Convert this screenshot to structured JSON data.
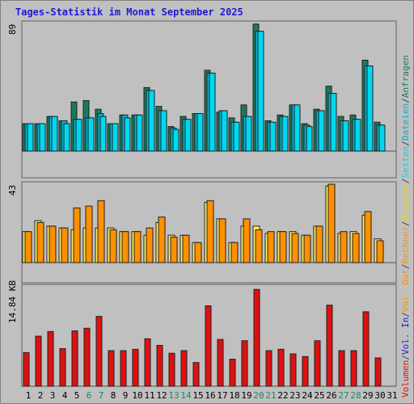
{
  "title": "Tages-Statistik im Monat September 2025",
  "colors": {
    "hits": "#1a7a5a",
    "files": "#00d8f0",
    "pages": "#00d8f0",
    "visits": "#fff060",
    "sites": "#ff9000",
    "kbytes": "#e01010",
    "background": "#c0c0c0",
    "title": "#1a1ad6",
    "weekend": "#1a8a5a"
  },
  "chart_data": [
    {
      "type": "bar",
      "panel": "top",
      "scale_label": "89",
      "ylim": [
        0,
        89
      ],
      "categories": [
        "1",
        "2",
        "3",
        "4",
        "5",
        "6",
        "7",
        "8",
        "9",
        "10",
        "11",
        "12",
        "13",
        "14",
        "15",
        "16",
        "17",
        "18",
        "19",
        "20",
        "21",
        "22",
        "23",
        "24",
        "25",
        "26",
        "27",
        "28",
        "29",
        "30",
        "31"
      ],
      "weekend_days": [
        "6",
        "7",
        "13",
        "14",
        "20",
        "21",
        "27",
        "28"
      ],
      "series": [
        {
          "name": "Anfragen",
          "values": [
            19,
            19,
            24,
            21,
            34,
            35,
            29,
            19,
            25,
            25,
            44,
            31,
            17,
            24,
            26,
            56,
            27,
            23,
            32,
            88,
            21,
            25,
            32,
            19,
            29,
            45,
            24,
            25,
            63,
            20,
            0
          ]
        },
        {
          "name": "Dateien",
          "values": [
            19,
            19,
            24,
            21,
            22,
            23,
            26,
            19,
            25,
            25,
            42,
            28,
            16,
            22,
            26,
            54,
            28,
            20,
            24,
            83,
            20,
            24,
            32,
            18,
            28,
            40,
            21,
            22,
            59,
            18,
            0
          ]
        },
        {
          "name": "Seiten",
          "values": [
            19,
            19,
            24,
            19,
            22,
            23,
            24,
            19,
            23,
            25,
            42,
            28,
            15,
            22,
            26,
            54,
            28,
            20,
            24,
            83,
            20,
            24,
            32,
            17,
            28,
            40,
            21,
            22,
            59,
            18,
            0
          ]
        }
      ]
    },
    {
      "type": "bar",
      "panel": "middle",
      "scale_label": "43",
      "ylim": [
        0,
        43
      ],
      "categories": [
        "1",
        "2",
        "3",
        "4",
        "5",
        "6",
        "7",
        "8",
        "9",
        "10",
        "11",
        "12",
        "13",
        "14",
        "15",
        "16",
        "17",
        "18",
        "19",
        "20",
        "21",
        "22",
        "23",
        "24",
        "25",
        "26",
        "27",
        "28",
        "29",
        "30",
        "31"
      ],
      "series": [
        {
          "name": "Besuche",
          "values": [
            17,
            23,
            20,
            19,
            18,
            19,
            19,
            19,
            17,
            17,
            15,
            22,
            15,
            15,
            11,
            33,
            24,
            11,
            20,
            20,
            16,
            17,
            17,
            15,
            20,
            42,
            16,
            17,
            26,
            13,
            0
          ]
        },
        {
          "name": "Rechner",
          "values": [
            17,
            22,
            20,
            19,
            30,
            31,
            34,
            18,
            17,
            17,
            19,
            25,
            14,
            15,
            11,
            34,
            24,
            11,
            24,
            18,
            17,
            17,
            16,
            15,
            20,
            43,
            17,
            16,
            28,
            12,
            0
          ]
        }
      ]
    },
    {
      "type": "bar",
      "panel": "bottom",
      "scale_label": "14.84 KB",
      "ylim": [
        0,
        14.84
      ],
      "categories": [
        "1",
        "2",
        "3",
        "4",
        "5",
        "6",
        "7",
        "8",
        "9",
        "10",
        "11",
        "12",
        "13",
        "14",
        "15",
        "16",
        "17",
        "18",
        "19",
        "20",
        "21",
        "22",
        "23",
        "24",
        "25",
        "26",
        "27",
        "28",
        "29",
        "30",
        "31"
      ],
      "series": [
        {
          "name": "Volumen",
          "values": [
            5.1,
            7.6,
            8.3,
            5.7,
            8.4,
            8.8,
            10.6,
            5.4,
            5.4,
            5.6,
            7.2,
            6.2,
            5.0,
            5.4,
            3.6,
            12.2,
            7.1,
            4.1,
            6.9,
            14.7,
            5.4,
            5.6,
            4.9,
            4.5,
            6.9,
            12.3,
            5.4,
            5.4,
            11.3,
            4.3,
            0
          ]
        }
      ]
    }
  ],
  "legend_top": {
    "l1": "Anfragen",
    "s1": "/",
    "l2": "Dateien",
    "s2": "/",
    "l3": "Seiten",
    "s3": "/",
    "l4": "Besuche",
    "s4": "/",
    "l5": "Rechner",
    "s5": "/",
    "l6": "Vol. Out",
    "s6": "/",
    "l7": "Vol. In",
    "s7": "/",
    "l8": "Volumen"
  },
  "legend_colors": {
    "c1": "#1a7a5a",
    "c2": "#00b0d0",
    "c3": "#00d8f0",
    "c4": "#e8d020",
    "c5": "#ff9000",
    "c6": "#ff9000",
    "c7": "#1a1ad6",
    "c8": "#e01010",
    "sep": "#404040"
  }
}
